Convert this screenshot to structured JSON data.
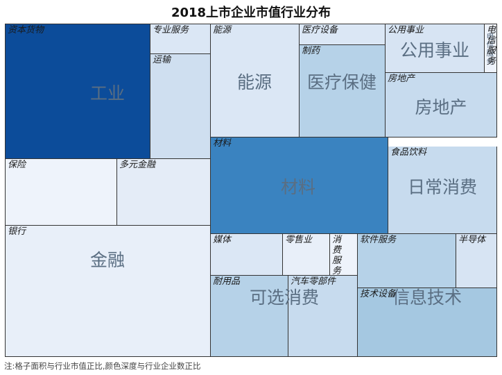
{
  "title": "2018上市企业市值行业分布",
  "note": "注:格子面积与行业市值正比,颜色深度与行业企业数正比",
  "chart_data": {
    "type": "treemap",
    "title": "2018上市企业市值行业分布",
    "size_meaning": "行业市值",
    "color_meaning": "行业企业数",
    "sectors": [
      {
        "name": "工业",
        "industries": [
          "资本货物",
          "专业服务",
          "运输"
        ]
      },
      {
        "name": "金融",
        "industries": [
          "保险",
          "多元金融",
          "银行"
        ]
      },
      {
        "name": "能源",
        "industries": [
          "能源"
        ]
      },
      {
        "name": "医疗保健",
        "industries": [
          "医疗设备",
          "制药"
        ]
      },
      {
        "name": "公用事业",
        "industries": [
          "公用事业"
        ]
      },
      {
        "name": "房地产",
        "industries": [
          "房地产"
        ]
      },
      {
        "name": "材料",
        "industries": [
          "材料"
        ]
      },
      {
        "name": "日常消费",
        "industries": [
          "食品饮料"
        ]
      },
      {
        "name": "可选消费",
        "industries": [
          "媒体",
          "零售业",
          "消费服务",
          "耐用品",
          "汽车零部件"
        ]
      },
      {
        "name": "信息技术",
        "industries": [
          "软件服务",
          "半导体",
          "技术设备"
        ]
      },
      {
        "name": "电信服务",
        "industries": [
          "电信服务"
        ]
      }
    ]
  }
}
